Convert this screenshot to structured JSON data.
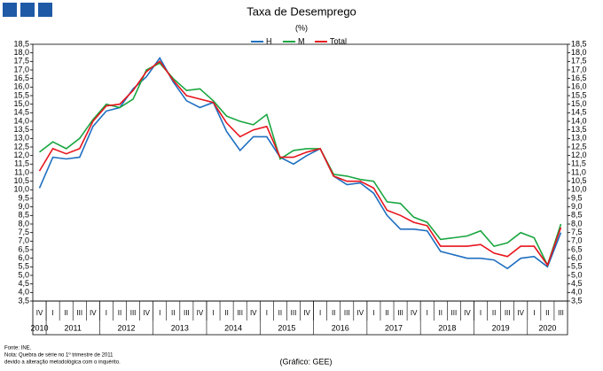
{
  "chart_data": {
    "type": "line",
    "title": "Taxa de Desemprego",
    "subtitle": "(%)",
    "categories": [
      "IV",
      "I",
      "II",
      "III",
      "IV",
      "I",
      "II",
      "III",
      "IV",
      "I",
      "II",
      "III",
      "IV",
      "I",
      "II",
      "III",
      "IV",
      "I",
      "II",
      "III",
      "IV",
      "I",
      "II",
      "III",
      "IV",
      "I",
      "II",
      "III",
      "IV",
      "I",
      "II",
      "III",
      "IV",
      "I",
      "II",
      "III",
      "IV",
      "I",
      "II",
      "III"
    ],
    "years": [
      "2010",
      "2011",
      "2012",
      "2013",
      "2014",
      "2015",
      "2016",
      "2017",
      "2018",
      "2019",
      "2020"
    ],
    "series": [
      {
        "name": "H",
        "color": "#1f6fc0",
        "values": [
          10.1,
          11.9,
          11.8,
          11.9,
          13.7,
          14.6,
          14.8,
          15.9,
          16.6,
          17.7,
          16.3,
          15.2,
          14.8,
          15.1,
          13.4,
          12.3,
          13.1,
          13.1,
          11.9,
          11.5,
          12.0,
          12.4,
          10.8,
          10.3,
          10.4,
          9.8,
          8.5,
          7.7,
          7.7,
          7.6,
          6.4,
          6.2,
          6.0,
          6.0,
          5.9,
          5.4,
          6.0,
          6.1,
          5.5,
          7.5
        ]
      },
      {
        "name": "M",
        "color": "#1aa640",
        "values": [
          12.2,
          12.8,
          12.4,
          13.0,
          14.1,
          15.0,
          14.8,
          15.3,
          17.0,
          17.4,
          16.5,
          15.8,
          15.9,
          15.2,
          14.3,
          14.0,
          13.8,
          14.4,
          11.8,
          12.3,
          12.4,
          12.4,
          10.9,
          10.8,
          10.6,
          10.5,
          9.3,
          9.2,
          8.4,
          8.1,
          7.1,
          7.2,
          7.3,
          7.6,
          6.7,
          6.9,
          7.5,
          7.2,
          5.6,
          8.0
        ]
      },
      {
        "name": "Total",
        "color": "#e8141c",
        "values": [
          11.1,
          12.4,
          12.1,
          12.4,
          14.0,
          14.9,
          15.0,
          15.8,
          16.9,
          17.5,
          16.4,
          15.5,
          15.3,
          15.1,
          13.9,
          13.1,
          13.5,
          13.7,
          11.9,
          11.9,
          12.2,
          12.4,
          10.8,
          10.5,
          10.5,
          10.1,
          8.8,
          8.5,
          8.1,
          7.9,
          6.7,
          6.7,
          6.7,
          6.8,
          6.3,
          6.1,
          6.7,
          6.7,
          5.6,
          7.8
        ]
      }
    ],
    "ylim": [
      3.5,
      18.5
    ],
    "yticks": [
      {
        "value": 3.5,
        "label": "3,5"
      },
      {
        "value": 4,
        "label": "4,0"
      },
      {
        "value": 4.5,
        "label": "4,5"
      },
      {
        "value": 5,
        "label": "5,0"
      },
      {
        "value": 5.5,
        "label": "5,5"
      },
      {
        "value": 6,
        "label": "6,0"
      },
      {
        "value": 6.5,
        "label": "6,5"
      },
      {
        "value": 7,
        "label": "7,0"
      },
      {
        "value": 7.5,
        "label": "7,5"
      },
      {
        "value": 8,
        "label": "8,0"
      },
      {
        "value": 8.5,
        "label": "8,5"
      },
      {
        "value": 9,
        "label": "9,0"
      },
      {
        "value": 9.5,
        "label": "9,5"
      },
      {
        "value": 10,
        "label": "10,0"
      },
      {
        "value": 10.5,
        "label": "10,5"
      },
      {
        "value": 11,
        "label": "11,0"
      },
      {
        "value": 11.5,
        "label": "11,5"
      },
      {
        "value": 12,
        "label": "12,0"
      },
      {
        "value": 12.5,
        "label": "12,5"
      },
      {
        "value": 13,
        "label": "13,0"
      },
      {
        "value": 13.5,
        "label": "13,5"
      },
      {
        "value": 14,
        "label": "14,0"
      },
      {
        "value": 14.5,
        "label": "14,5"
      },
      {
        "value": 15,
        "label": "15,0"
      },
      {
        "value": 15.5,
        "label": "15,5"
      },
      {
        "value": 16,
        "label": "16,0"
      },
      {
        "value": 16.5,
        "label": "16,5"
      },
      {
        "value": 17,
        "label": "17,0"
      },
      {
        "value": 17.5,
        "label": "17,5"
      },
      {
        "value": 18,
        "label": "18,0"
      },
      {
        "value": 18.5,
        "label": "18,5"
      }
    ],
    "notes": [
      "Fonte: INE.",
      "Nota: Quebra de série no 1º trimestre de 2011",
      "devido a alteração metodológica com o inquérito."
    ],
    "credit": "(Gráfico: GEE)"
  }
}
